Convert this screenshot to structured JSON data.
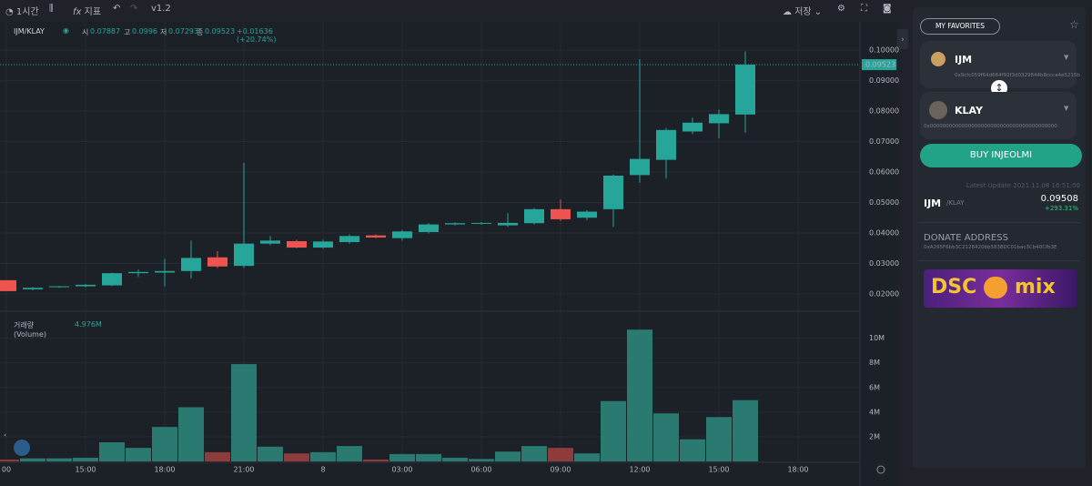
{
  "toolbar": {
    "interval": "1시간",
    "indicators": "지표",
    "version": "v1.2",
    "save": "저장"
  },
  "chart_data": {
    "type": "candlestick",
    "symbol": "IJM/KLAY",
    "ohlc_labels": {
      "open": "시",
      "high": "고",
      "low": "저",
      "close": "종"
    },
    "change": "+0.01636 (+20.74%)",
    "categories": [
      "00",
      null,
      null,
      "15:00",
      null,
      null,
      "18:00",
      null,
      null,
      "21:00",
      null,
      null,
      "8",
      null,
      null,
      "03:00",
      null,
      null,
      "06:00",
      null,
      null,
      "09:00",
      null,
      null,
      "12:00",
      null,
      null,
      "15:00",
      null,
      null,
      "18:00"
    ],
    "open": [
      0.0245,
      0.0215,
      0.0222,
      0.0225,
      0.0228,
      0.0268,
      0.027,
      0.0275,
      0.032,
      0.0292,
      0.0365,
      0.0373,
      0.0352,
      0.037,
      0.0392,
      0.0383,
      0.0403,
      0.0428,
      0.043,
      0.0425,
      0.0432,
      0.0478,
      0.045,
      0.0478,
      0.059,
      0.064,
      0.0733,
      0.076,
      0.07887,
      null,
      null
    ],
    "high": [
      0.0245,
      0.0222,
      0.0226,
      0.0232,
      0.027,
      0.028,
      0.0315,
      0.0375,
      0.034,
      0.063,
      0.039,
      0.0378,
      0.0378,
      0.0395,
      0.0395,
      0.041,
      0.0432,
      0.0435,
      0.0436,
      0.0465,
      0.0482,
      0.051,
      0.0475,
      0.0592,
      0.097,
      0.0745,
      0.0778,
      0.0805,
      0.0996,
      null,
      null
    ],
    "low": [
      0.0209,
      0.0212,
      0.022,
      0.0222,
      0.0226,
      0.0255,
      0.0225,
      0.025,
      0.0285,
      0.0285,
      0.036,
      0.035,
      0.0348,
      0.0365,
      0.0383,
      0.0375,
      0.0398,
      0.0425,
      0.0428,
      0.042,
      0.0428,
      0.044,
      0.0442,
      0.042,
      0.0565,
      0.0578,
      0.0725,
      0.071,
      0.07293,
      null,
      null
    ],
    "close": [
      0.0209,
      0.022,
      0.0225,
      0.023,
      0.0268,
      0.0272,
      0.0275,
      0.0318,
      0.029,
      0.0365,
      0.0375,
      0.0352,
      0.0372,
      0.039,
      0.0385,
      0.0405,
      0.0428,
      0.0432,
      0.0433,
      0.0433,
      0.0478,
      0.0445,
      0.047,
      0.0588,
      0.0643,
      0.0738,
      0.0762,
      0.079,
      0.09523,
      null,
      null
    ],
    "up_color": "#26a69a",
    "down_color": "#ef5350",
    "ylim": [
      0.0149,
      0.106
    ],
    "yticks": [
      {
        "value": 0.02,
        "label": "0.02000"
      },
      {
        "value": 0.03,
        "label": "0.03000"
      },
      {
        "value": 0.04,
        "label": "0.04000"
      },
      {
        "value": 0.05,
        "label": "0.05000"
      },
      {
        "value": 0.06,
        "label": "0.06000"
      },
      {
        "value": 0.07,
        "label": "0.07000"
      },
      {
        "value": 0.08,
        "label": "0.08000"
      },
      {
        "value": 0.09,
        "label": "0.09000"
      },
      {
        "value": 0.1,
        "label": "0.10000"
      }
    ],
    "grid": true,
    "volume": {
      "title": "거래량 (Volume)",
      "last_value_label": "4.976M",
      "values": [
        150000,
        250000,
        250000,
        300000,
        1550000,
        1100000,
        2800000,
        4400000,
        750000,
        7900000,
        1200000,
        650000,
        750000,
        1250000,
        150000,
        600000,
        600000,
        300000,
        200000,
        800000,
        1250000,
        1100000,
        650000,
        4900000,
        10700000,
        3900000,
        1800000,
        3600000,
        4976000,
        null,
        null
      ],
      "up_color": "#2a7a71",
      "down_color": "#8e3b3b",
      "ylim": [
        0,
        11600000
      ],
      "yticks": [
        {
          "value": 2000000,
          "label": "2M"
        },
        {
          "value": 4000000,
          "label": "4M"
        },
        {
          "value": 6000000,
          "label": "6M"
        },
        {
          "value": 8000000,
          "label": "8M"
        },
        {
          "value": 10000000,
          "label": "10M"
        }
      ]
    }
  },
  "sidebar": {
    "favorites": "MY FAVORITES",
    "token_a": {
      "symbol": "IJM",
      "address": "0x9cfc059f64d664f92f3d0329844b8ccca4e5215b"
    },
    "token_b": {
      "symbol": "KLAY",
      "address": "0x0000000000000000000000000000000000000000"
    },
    "buy": "BUY INJEOLMI",
    "latest_update": "Latest Update 2021.11.08 16:51:00",
    "pair": {
      "base": "IJM",
      "quote": "/KLAY",
      "price": "0.09508",
      "change": "+293.31%"
    },
    "donate": {
      "title": "DONATE ADDRESS",
      "address": "0xA295F6bb3C2128420bb5838DC01bac3Cb40Cfb3E"
    },
    "banner": {
      "left": "DSC",
      "right": "mix"
    }
  }
}
